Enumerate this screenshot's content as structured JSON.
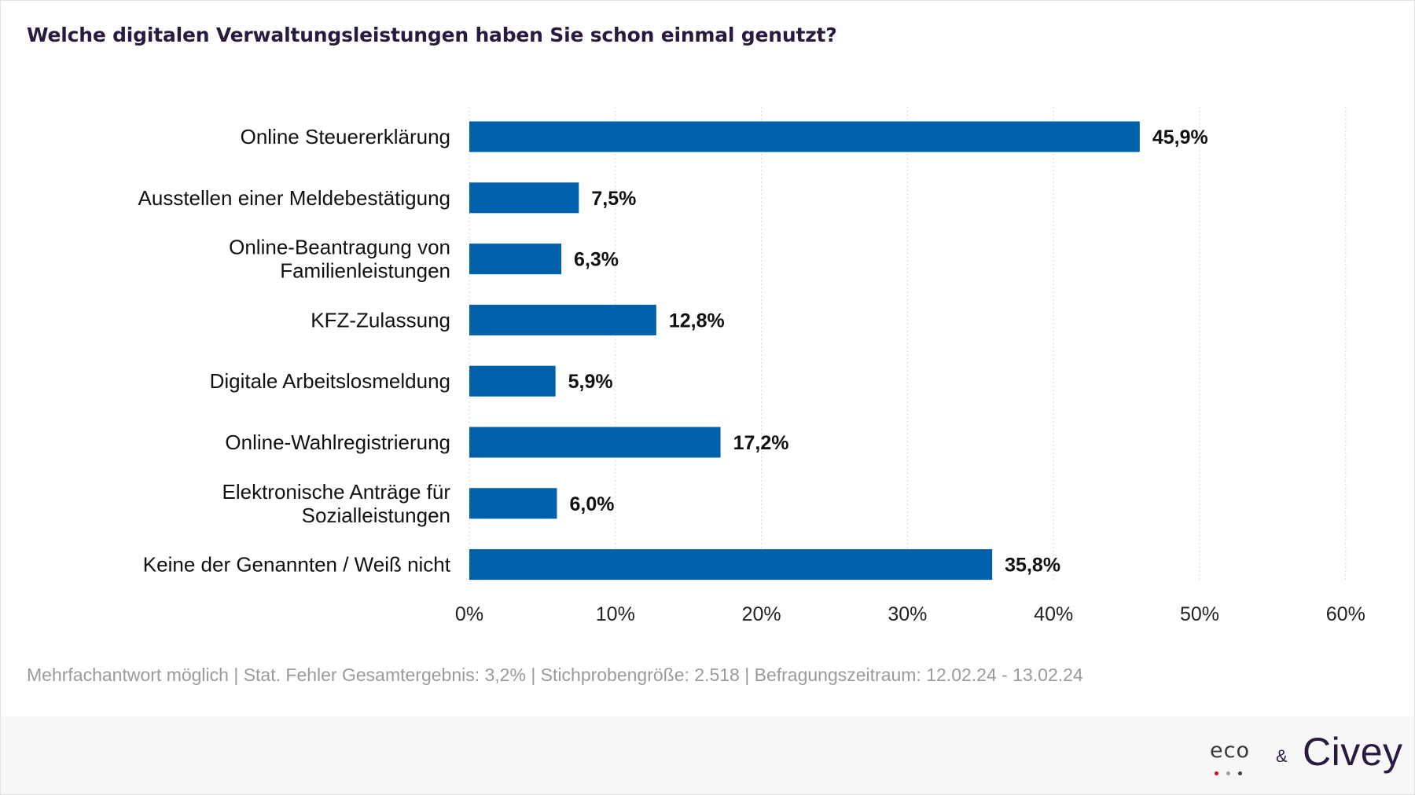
{
  "title": "Welche digitalen Verwaltungsleistungen haben Sie schon einmal genutzt?",
  "chart_data": {
    "type": "bar",
    "orientation": "horizontal",
    "title": "Welche digitalen Verwaltungsleistungen haben Sie schon einmal genutzt?",
    "categories": [
      [
        "Online Steuererklärung"
      ],
      [
        "Ausstellen einer Meldebestätigung"
      ],
      [
        "Online-Beantragung von",
        "Familienleistungen"
      ],
      [
        "KFZ-Zulassung"
      ],
      [
        "Digitale Arbeitslosmeldung"
      ],
      [
        "Online-Wahlregistrierung"
      ],
      [
        "Elektronische Anträge für",
        "Sozialleistungen"
      ],
      [
        "Keine der Genannten / Weiß nicht"
      ]
    ],
    "values": [
      45.9,
      7.5,
      6.3,
      12.8,
      5.9,
      17.2,
      6.0,
      35.8
    ],
    "value_labels": [
      "45,9%",
      "7,5%",
      "6,3%",
      "12,8%",
      "5,9%",
      "17,2%",
      "6,0%",
      "35,8%"
    ],
    "xlim": [
      0,
      60
    ],
    "xticks": [
      0,
      10,
      20,
      30,
      40,
      50,
      60
    ],
    "xtick_labels": [
      "0%",
      "10%",
      "20%",
      "30%",
      "40%",
      "50%",
      "60%"
    ],
    "grid": "vertical dotted",
    "bar_color": "#0060aa"
  },
  "note": "Mehrfachantwort möglich | Stat. Fehler Gesamtergebnis: 3,2% | Stichprobengröße: 2.518 | Befragungszeitraum: 12.02.24 - 13.02.24",
  "footer": {
    "eco_logo": "eco",
    "eco_dot_colors": [
      "#e2001a",
      "#a0a0a0",
      "#3a3a3a"
    ],
    "ampersand": "&",
    "civey_logo": "Civey"
  }
}
